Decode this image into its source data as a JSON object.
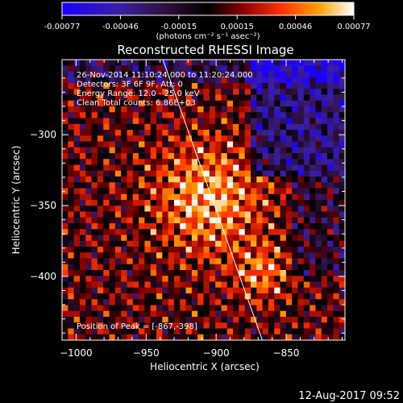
{
  "colorbar": {
    "tick_labels": [
      "-0.00077",
      "-0.00046",
      "-0.00015",
      "0.00015",
      "0.00046",
      "0.00077"
    ],
    "unit_label": "(photons cm⁻² s⁻¹ asec⁻²)",
    "range": [
      -0.00077,
      0.00077
    ]
  },
  "chart_data": {
    "type": "heatmap",
    "title": "Reconstructed RHESSI Image",
    "xlabel": "Heliocentric X (arcsec)",
    "ylabel": "Heliocentric Y (arcsec)",
    "xlim": [
      -1010,
      -808
    ],
    "ylim": [
      -445,
      -247
    ],
    "x_ticks": [
      -1000,
      -950,
      -900,
      -850
    ],
    "y_ticks": [
      -300,
      -350,
      -400
    ],
    "x_tick_labels": [
      "−1000",
      "−950",
      "−900",
      "−850"
    ],
    "y_tick_labels": [
      "−300",
      "−350",
      "−400"
    ],
    "annotations": [
      "26-Nov-2014 11:10:24.000 to 11:20:24.000",
      "Detectors: 3F 6F 9F, Att: 0",
      "Energy Range: 12.0 - 25.0 keV",
      "Clean    Total counts: 6.86E+03"
    ],
    "peak_label": "Position of Peak = [-867,-398]",
    "peak": [
      -867,
      -398
    ],
    "limb_line": {
      "x": [
        -938,
        -867
      ],
      "y": [
        -247,
        -445
      ]
    }
  },
  "footer": {
    "date": "12-Aug-2017 09:52"
  }
}
